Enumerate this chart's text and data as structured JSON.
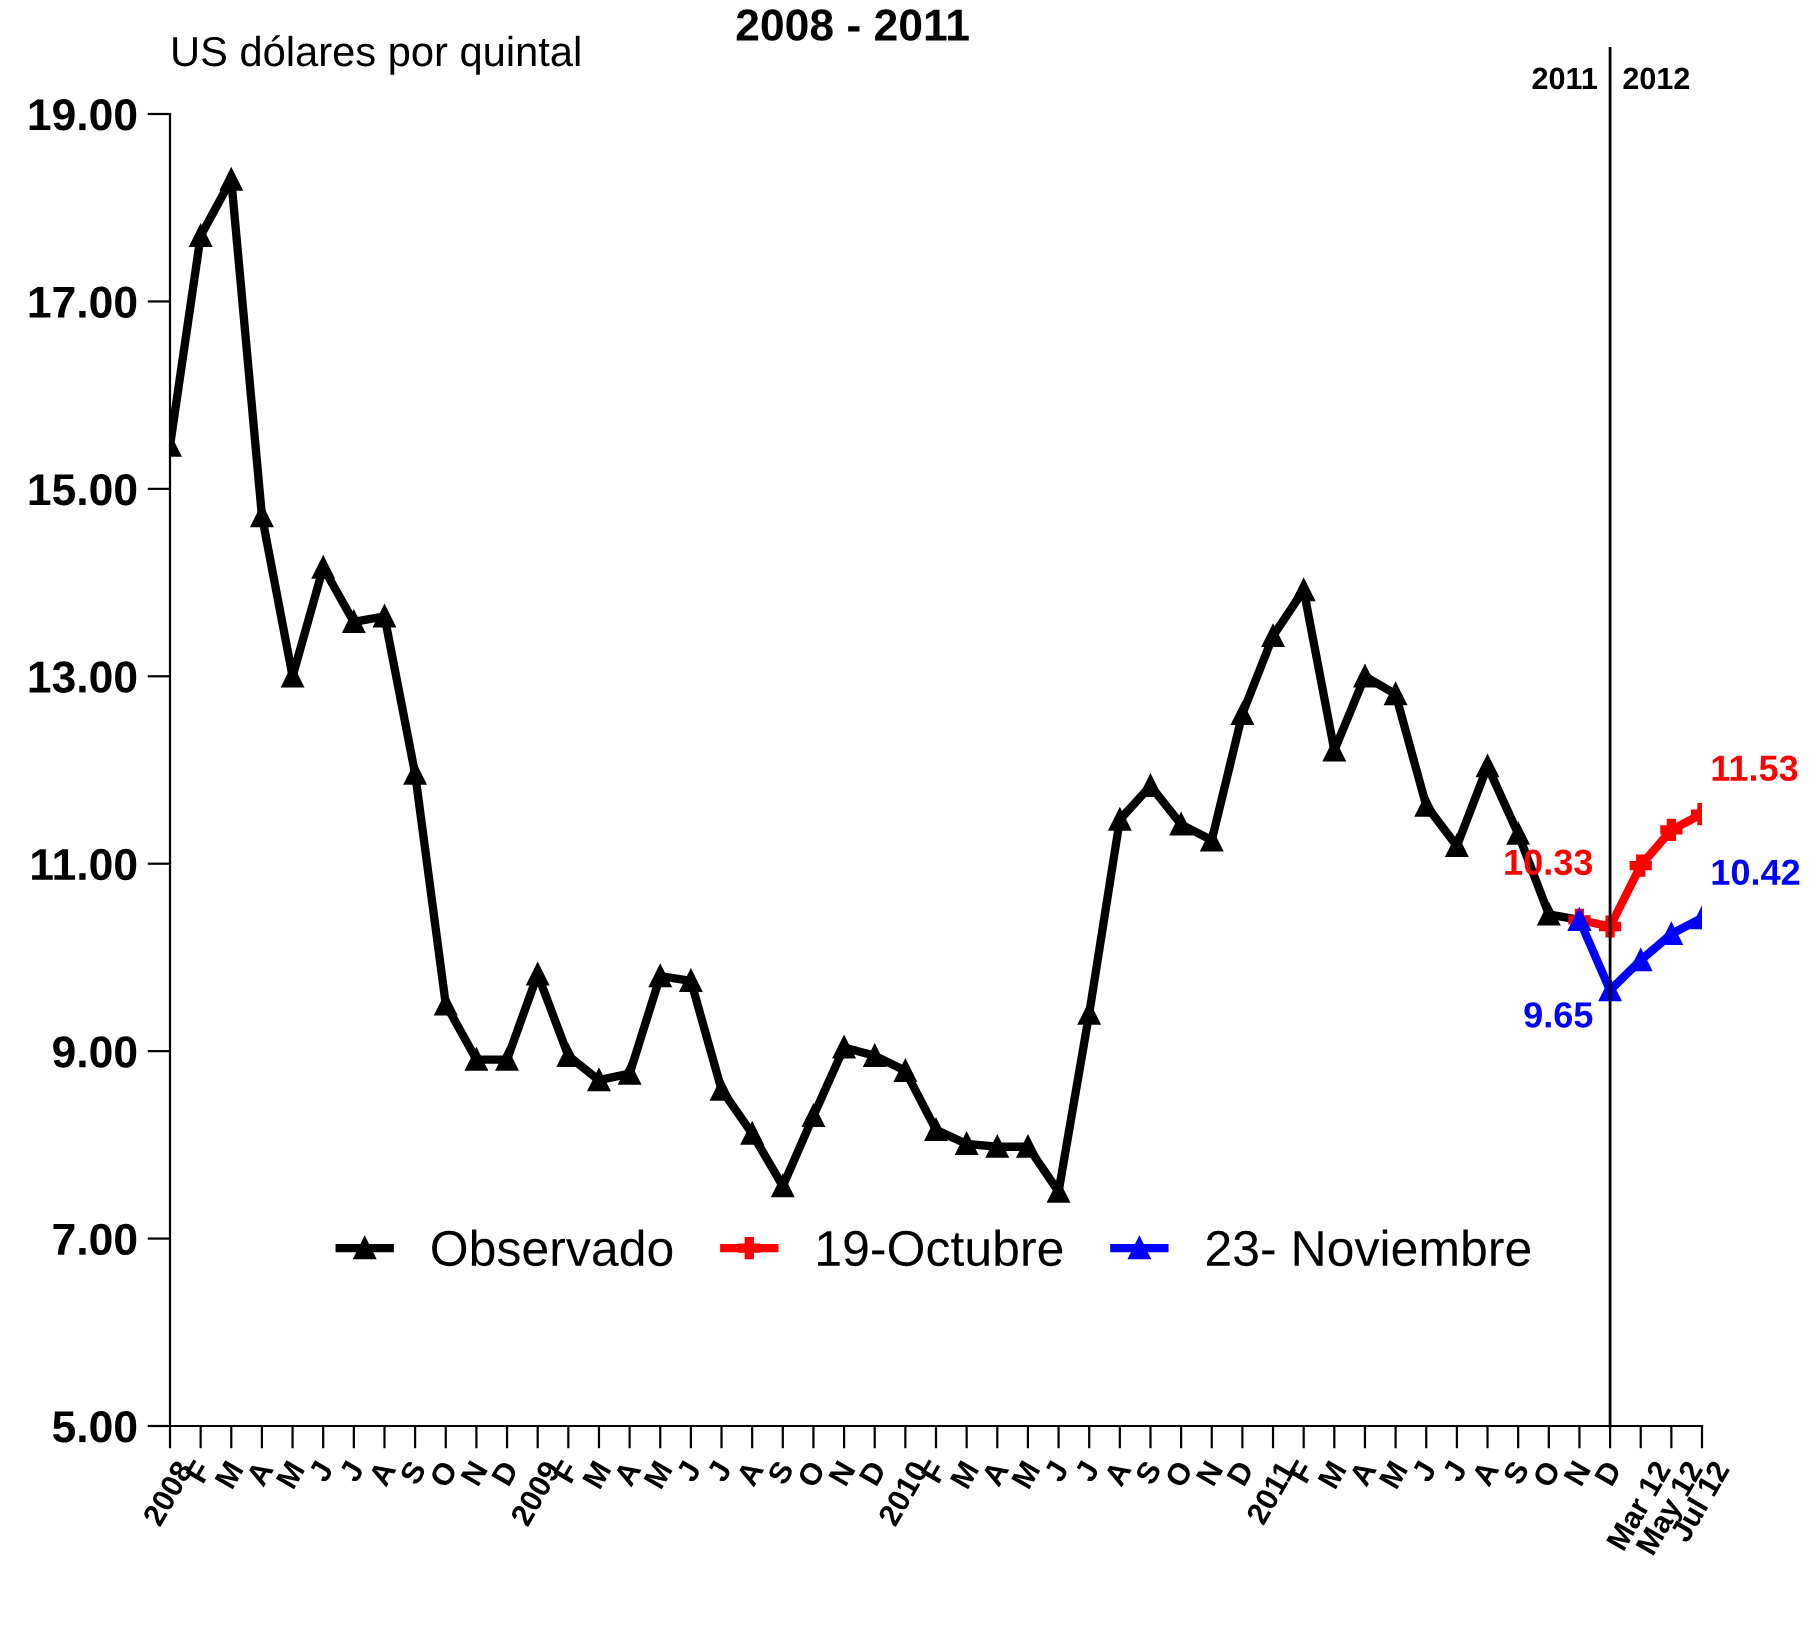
{
  "chart_data": {
    "type": "line",
    "title": "2008 - 2011",
    "ylabel": "US dólares por quintal",
    "categories": [
      "2008",
      "F",
      "M",
      "A",
      "M",
      "J",
      "J",
      "A",
      "S",
      "O",
      "N",
      "D",
      "2009",
      "F",
      "M",
      "A",
      "M",
      "J",
      "J",
      "A",
      "S",
      "O",
      "N",
      "D",
      "2010",
      "F",
      "M",
      "A",
      "M",
      "J",
      "J",
      "A",
      "S",
      "O",
      "N",
      "D",
      "2011",
      "F",
      "M",
      "A",
      "M",
      "J",
      "J",
      "A",
      "S",
      "O",
      "N",
      "D",
      "Mar 12",
      "May 12",
      "Jul 12"
    ],
    "series": [
      {
        "name": "Observado",
        "color": "#000000",
        "marker": "triangle",
        "values": [
          15.46,
          17.7,
          18.3,
          14.71,
          13.0,
          14.16,
          13.58,
          13.64,
          11.96,
          9.5,
          8.91,
          8.91,
          9.82,
          8.95,
          8.69,
          8.76,
          9.8,
          9.75,
          8.59,
          8.12,
          7.56,
          8.31,
          9.04,
          8.95,
          8.79,
          8.16,
          8.01,
          7.98,
          7.98,
          7.5,
          9.4,
          11.47,
          11.83,
          11.42,
          11.25,
          12.6,
          13.43,
          13.92,
          12.21,
          13.0,
          12.81,
          11.62,
          11.19,
          12.04,
          11.32,
          10.46,
          10.4,
          null,
          null,
          null,
          null
        ]
      },
      {
        "name": "19-Octubre",
        "color": "#ff0000",
        "marker": "cross",
        "values": [
          null,
          null,
          null,
          null,
          null,
          null,
          null,
          null,
          null,
          null,
          null,
          null,
          null,
          null,
          null,
          null,
          null,
          null,
          null,
          null,
          null,
          null,
          null,
          null,
          null,
          null,
          null,
          null,
          null,
          null,
          null,
          null,
          null,
          null,
          null,
          null,
          null,
          null,
          null,
          null,
          null,
          null,
          null,
          null,
          null,
          null,
          10.4,
          10.33,
          10.98,
          11.36,
          11.53
        ],
        "value_labels": [
          null,
          null,
          null,
          null,
          null,
          null,
          null,
          null,
          null,
          null,
          null,
          null,
          null,
          null,
          null,
          null,
          null,
          null,
          null,
          null,
          null,
          null,
          null,
          null,
          null,
          null,
          null,
          null,
          null,
          null,
          null,
          null,
          null,
          null,
          null,
          null,
          null,
          null,
          null,
          null,
          null,
          null,
          null,
          null,
          null,
          null,
          null,
          "10.33",
          null,
          null,
          "11.53"
        ]
      },
      {
        "name": "23- Noviembre",
        "color": "#0000ff",
        "marker": "triangle",
        "values": [
          null,
          null,
          null,
          null,
          null,
          null,
          null,
          null,
          null,
          null,
          null,
          null,
          null,
          null,
          null,
          null,
          null,
          null,
          null,
          null,
          null,
          null,
          null,
          null,
          null,
          null,
          null,
          null,
          null,
          null,
          null,
          null,
          null,
          null,
          null,
          null,
          null,
          null,
          null,
          null,
          null,
          null,
          null,
          null,
          null,
          null,
          10.4,
          9.65,
          9.97,
          10.25,
          10.42
        ],
        "value_labels": [
          null,
          null,
          null,
          null,
          null,
          null,
          null,
          null,
          null,
          null,
          null,
          null,
          null,
          null,
          null,
          null,
          null,
          null,
          null,
          null,
          null,
          null,
          null,
          null,
          null,
          null,
          null,
          null,
          null,
          null,
          null,
          null,
          null,
          null,
          null,
          null,
          null,
          null,
          null,
          null,
          null,
          null,
          null,
          null,
          null,
          null,
          null,
          "9.65",
          null,
          null,
          "10.42"
        ]
      }
    ],
    "ylim": [
      5,
      19
    ],
    "yticks": [
      {
        "value": 5,
        "label": "5.00"
      },
      {
        "value": 7,
        "label": "7.00"
      },
      {
        "value": 9,
        "label": "9.00"
      },
      {
        "value": 11,
        "label": "11.00"
      },
      {
        "value": 13,
        "label": "13.00"
      },
      {
        "value": 15,
        "label": "15.00"
      },
      {
        "value": 17,
        "label": "17.00"
      },
      {
        "value": 19,
        "label": "19.00"
      }
    ],
    "annotations": [
      "2011",
      "2012"
    ],
    "legend": "bottom",
    "line_style": "solid"
  }
}
